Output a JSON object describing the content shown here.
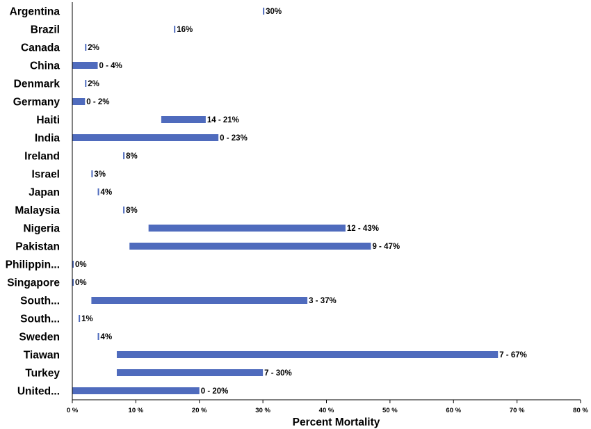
{
  "chart_data": {
    "type": "bar",
    "orientation": "horizontal",
    "bar_style": "floating-range",
    "title": "",
    "xlabel": "Percent Mortality",
    "ylabel": "",
    "xlim": [
      0,
      80
    ],
    "x_ticks": [
      0,
      10,
      20,
      30,
      40,
      50,
      60,
      70,
      80
    ],
    "x_tick_labels": [
      "0 %",
      "10 %",
      "20 %",
      "30 %",
      "40 %",
      "50 %",
      "60 %",
      "70 %",
      "80 %"
    ],
    "grid": false,
    "legend": "none",
    "bar_color": "#4f6bbd",
    "categories": [
      "Argentina",
      "Brazil",
      "Canada",
      "China",
      "Denmark",
      "Germany",
      "Haiti",
      "India",
      "Ireland",
      "Israel",
      "Japan",
      "Malaysia",
      "Nigeria",
      "Pakistan",
      "Philippin...",
      "Singapore",
      "South...",
      "South...",
      "Sweden",
      "Tiawan",
      "Turkey",
      "United..."
    ],
    "low": [
      30,
      16,
      2,
      0,
      2,
      0,
      14,
      0,
      8,
      3,
      4,
      8,
      12,
      9,
      0,
      0,
      3,
      1,
      4,
      7,
      7,
      0
    ],
    "high": [
      30,
      16,
      2,
      4,
      2,
      2,
      21,
      23,
      8,
      3,
      4,
      8,
      43,
      47,
      0,
      0,
      37,
      1,
      4,
      67,
      30,
      20
    ],
    "data_labels": [
      "30%",
      "16%",
      "2%",
      "0 - 4%",
      "2%",
      "0 - 2%",
      "14 - 21%",
      "0 - 23%",
      "8%",
      "3%",
      "4%",
      "8%",
      "12 - 43%",
      "9 - 47%",
      "0%",
      "0%",
      "3 - 37%",
      "1%",
      "4%",
      "7 - 67%",
      "7 - 30%",
      "0 - 20%"
    ]
  }
}
